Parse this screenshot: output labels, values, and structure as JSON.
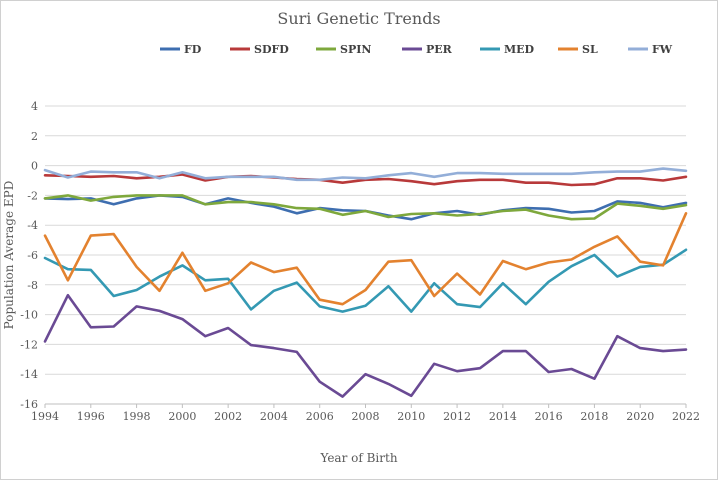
{
  "chart_data": {
    "type": "line",
    "title": "Suri Genetic Trends",
    "xlabel": "Year of Birth",
    "ylabel": "Population Average EPD",
    "ylim": [
      -16,
      4
    ],
    "yticks": [
      4,
      2,
      0,
      -2,
      -4,
      -6,
      -8,
      -10,
      -12,
      -14,
      -16
    ],
    "xlim": [
      1994,
      2022
    ],
    "xticks": [
      1994,
      1996,
      1998,
      2000,
      2002,
      2004,
      2006,
      2008,
      2010,
      2012,
      2014,
      2016,
      2018,
      2020,
      2022
    ],
    "grid": true,
    "legend": "top",
    "x": [
      1994,
      1995,
      1996,
      1997,
      1998,
      1999,
      2000,
      2001,
      2002,
      2003,
      2004,
      2005,
      2006,
      2007,
      2008,
      2009,
      2010,
      2011,
      2012,
      2013,
      2014,
      2015,
      2016,
      2017,
      2018,
      2019,
      2020,
      2021,
      2022
    ],
    "series": [
      {
        "name": "FD",
        "color": "#3e6eb0",
        "values": [
          -2.2,
          -2.25,
          -2.2,
          -2.6,
          -2.2,
          -2.0,
          -2.1,
          -2.6,
          -2.2,
          -2.5,
          -2.75,
          -3.2,
          -2.85,
          -3.0,
          -3.05,
          -3.35,
          -3.6,
          -3.2,
          -3.05,
          -3.3,
          -3.0,
          -2.85,
          -2.9,
          -3.15,
          -3.05,
          -2.4,
          -2.5,
          -2.8,
          -2.5
        ]
      },
      {
        "name": "SDFD",
        "color": "#b8393a",
        "values": [
          -0.65,
          -0.7,
          -0.75,
          -0.7,
          -0.85,
          -0.75,
          -0.6,
          -1.0,
          -0.75,
          -0.7,
          -0.8,
          -0.9,
          -0.95,
          -1.15,
          -0.95,
          -0.9,
          -1.05,
          -1.25,
          -1.05,
          -0.95,
          -0.95,
          -1.15,
          -1.15,
          -1.3,
          -1.25,
          -0.85,
          -0.85,
          -1.0,
          -0.75
        ]
      },
      {
        "name": "SPIN",
        "color": "#7ea83c",
        "values": [
          -2.2,
          -2.0,
          -2.35,
          -2.1,
          -2.0,
          -2.0,
          -2.0,
          -2.6,
          -2.45,
          -2.45,
          -2.6,
          -2.85,
          -2.9,
          -3.3,
          -3.05,
          -3.45,
          -3.25,
          -3.2,
          -3.35,
          -3.25,
          -3.05,
          -2.95,
          -3.35,
          -3.6,
          -3.55,
          -2.55,
          -2.7,
          -2.9,
          -2.65
        ]
      },
      {
        "name": "PER",
        "color": "#6a4a94",
        "values": [
          -11.8,
          -8.7,
          -10.85,
          -10.8,
          -9.45,
          -9.75,
          -10.3,
          -11.45,
          -10.9,
          -12.05,
          -12.25,
          -12.5,
          -14.5,
          -15.5,
          -14.0,
          -14.65,
          -15.45,
          -13.3,
          -13.8,
          -13.6,
          -12.45,
          -12.45,
          -13.85,
          -13.65,
          -14.3,
          -11.45,
          -12.25,
          -12.45,
          -12.35
        ]
      },
      {
        "name": "MED",
        "color": "#3499b3",
        "values": [
          -6.2,
          -6.95,
          -7.0,
          -8.75,
          -8.35,
          -7.45,
          -6.7,
          -7.7,
          -7.6,
          -9.65,
          -8.4,
          -7.85,
          -9.45,
          -9.8,
          -9.4,
          -8.1,
          -9.8,
          -7.9,
          -9.3,
          -9.5,
          -7.9,
          -9.3,
          -7.8,
          -6.75,
          -6.0,
          -7.45,
          -6.8,
          -6.65,
          -5.65
        ]
      },
      {
        "name": "SL",
        "color": "#e3822f",
        "values": [
          -4.7,
          -7.7,
          -4.7,
          -4.6,
          -6.8,
          -8.4,
          -5.85,
          -8.4,
          -7.9,
          -6.5,
          -7.15,
          -6.85,
          -9.0,
          -9.3,
          -8.35,
          -6.45,
          -6.35,
          -8.75,
          -7.25,
          -8.65,
          -6.4,
          -6.95,
          -6.5,
          -6.3,
          -5.45,
          -4.75,
          -6.45,
          -6.7,
          -3.2
        ]
      },
      {
        "name": "FW",
        "color": "#93aed8",
        "values": [
          -0.3,
          -0.8,
          -0.4,
          -0.45,
          -0.45,
          -0.85,
          -0.45,
          -0.85,
          -0.75,
          -0.75,
          -0.75,
          -0.95,
          -0.95,
          -0.8,
          -0.85,
          -0.65,
          -0.5,
          -0.75,
          -0.5,
          -0.5,
          -0.55,
          -0.55,
          -0.55,
          -0.55,
          -0.45,
          -0.4,
          -0.4,
          -0.2,
          -0.35
        ]
      }
    ]
  }
}
